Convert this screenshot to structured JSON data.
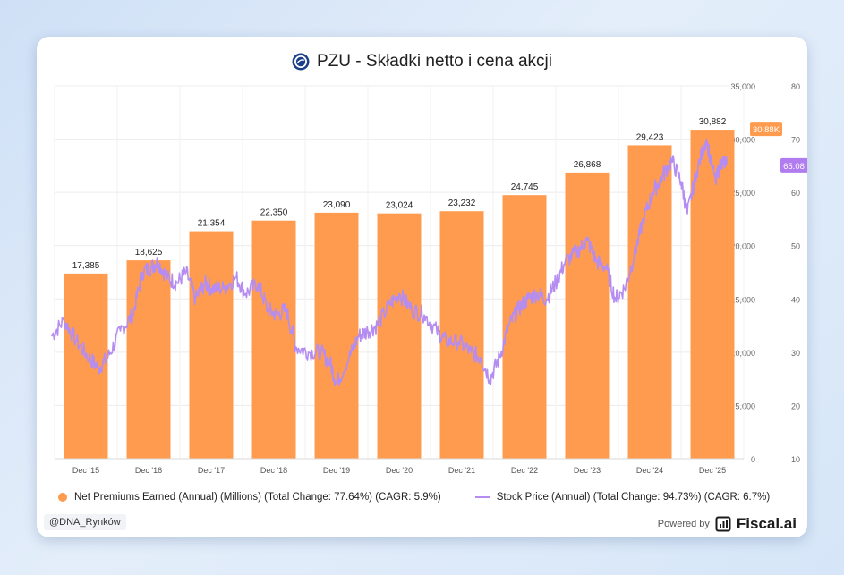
{
  "header": {
    "title": "PZU - Składki netto i cena akcji",
    "logo_icon": "pzu-logo-icon"
  },
  "legend": {
    "premiums": "Net Premiums Earned (Annual) (Millions) (Total Change: 77.64%) (CAGR: 5.9%)",
    "price": "Stock Price (Annual) (Total Change: 94.73%) (CAGR: 6.7%)"
  },
  "footer": {
    "handle": "@DNA_Rynków",
    "powered_by": "Powered by",
    "brand": "Fiscal.ai",
    "brand_icon": "fiscal-ai-logo-icon"
  },
  "colors": {
    "bar": "#ff9b4e",
    "line": "#b48cf2",
    "price_badge": "#b07cf0",
    "bar_badge": "#ff9b4e"
  },
  "chart_data": {
    "type": "bar",
    "categories": [
      "Dec '15",
      "Dec '16",
      "Dec '17",
      "Dec '18",
      "Dec '19",
      "Dec '20",
      "Dec '21",
      "Dec '22",
      "Dec '23",
      "Dec '24",
      "Dec '25"
    ],
    "series": [
      {
        "name": "Net Premiums Earned (Annual) (Millions)",
        "type": "bar",
        "axis": "left",
        "values": [
          17385,
          18625,
          21354,
          22350,
          23090,
          23024,
          23232,
          24745,
          26868,
          29423,
          30882
        ],
        "data_labels": [
          "17,385",
          "18,625",
          "21,354",
          "22,350",
          "23,090",
          "23,024",
          "23,232",
          "24,745",
          "26,868",
          "29,423",
          "30,882"
        ],
        "last_value_label": "30.88K"
      },
      {
        "name": "Stock Price (Annual)",
        "type": "line",
        "axis": "right",
        "points": [
          [
            2015.4,
            33
          ],
          [
            2015.6,
            36
          ],
          [
            2015.8,
            32
          ],
          [
            2016.0,
            29
          ],
          [
            2016.15,
            27
          ],
          [
            2016.3,
            29
          ],
          [
            2016.5,
            34
          ],
          [
            2016.7,
            37
          ],
          [
            2016.85,
            45
          ],
          [
            2017.0,
            46
          ],
          [
            2017.1,
            47
          ],
          [
            2017.25,
            44
          ],
          [
            2017.4,
            43
          ],
          [
            2017.55,
            45
          ],
          [
            2017.7,
            40
          ],
          [
            2017.85,
            43
          ],
          [
            2017.95,
            42
          ],
          [
            2018.15,
            42
          ],
          [
            2018.35,
            44
          ],
          [
            2018.5,
            41
          ],
          [
            2018.7,
            43
          ],
          [
            2018.85,
            38
          ],
          [
            2019.0,
            37
          ],
          [
            2019.15,
            38
          ],
          [
            2019.3,
            31
          ],
          [
            2019.5,
            30
          ],
          [
            2019.7,
            30
          ],
          [
            2019.85,
            28
          ],
          [
            2019.95,
            24
          ],
          [
            2020.15,
            29
          ],
          [
            2020.3,
            33
          ],
          [
            2020.45,
            34
          ],
          [
            2020.6,
            35
          ],
          [
            2020.8,
            39
          ],
          [
            2020.95,
            41
          ],
          [
            2021.15,
            38
          ],
          [
            2021.35,
            37
          ],
          [
            2021.55,
            34
          ],
          [
            2021.7,
            32
          ],
          [
            2021.9,
            32
          ],
          [
            2022.1,
            30
          ],
          [
            2022.25,
            29
          ],
          [
            2022.4,
            25
          ],
          [
            2022.55,
            29
          ],
          [
            2022.7,
            35
          ],
          [
            2022.85,
            38
          ],
          [
            2023.0,
            40
          ],
          [
            2023.15,
            41
          ],
          [
            2023.3,
            40
          ],
          [
            2023.45,
            43
          ],
          [
            2023.6,
            47
          ],
          [
            2023.8,
            49
          ],
          [
            2023.95,
            51
          ],
          [
            2024.1,
            47
          ],
          [
            2024.25,
            46
          ],
          [
            2024.4,
            40
          ],
          [
            2024.55,
            42
          ],
          [
            2024.7,
            48
          ],
          [
            2024.85,
            55
          ],
          [
            2025.0,
            60
          ],
          [
            2025.15,
            63
          ],
          [
            2025.3,
            66
          ],
          [
            2025.45,
            62
          ],
          [
            2025.55,
            56
          ],
          [
            2025.7,
            64
          ],
          [
            2025.85,
            70
          ],
          [
            2026.0,
            62
          ],
          [
            2026.1,
            66
          ],
          [
            2026.18,
            65.08
          ]
        ],
        "last_value_label": "65.08"
      }
    ],
    "left_axis": {
      "ticks": [
        0,
        5000,
        10000,
        15000,
        20000,
        25000,
        30000,
        35000
      ],
      "tick_labels": [
        "0",
        "5,000",
        "10,000",
        "15,000",
        "20,000",
        "25,000",
        "30,000",
        "35,000"
      ],
      "range": [
        0,
        35000
      ]
    },
    "right_axis": {
      "ticks": [
        10,
        20,
        30,
        40,
        50,
        60,
        70,
        80
      ],
      "tick_labels": [
        "10",
        "20",
        "30",
        "40",
        "50",
        "60",
        "70",
        "80"
      ],
      "range": [
        10,
        80
      ]
    },
    "grid": true,
    "legend_position": "bottom"
  }
}
